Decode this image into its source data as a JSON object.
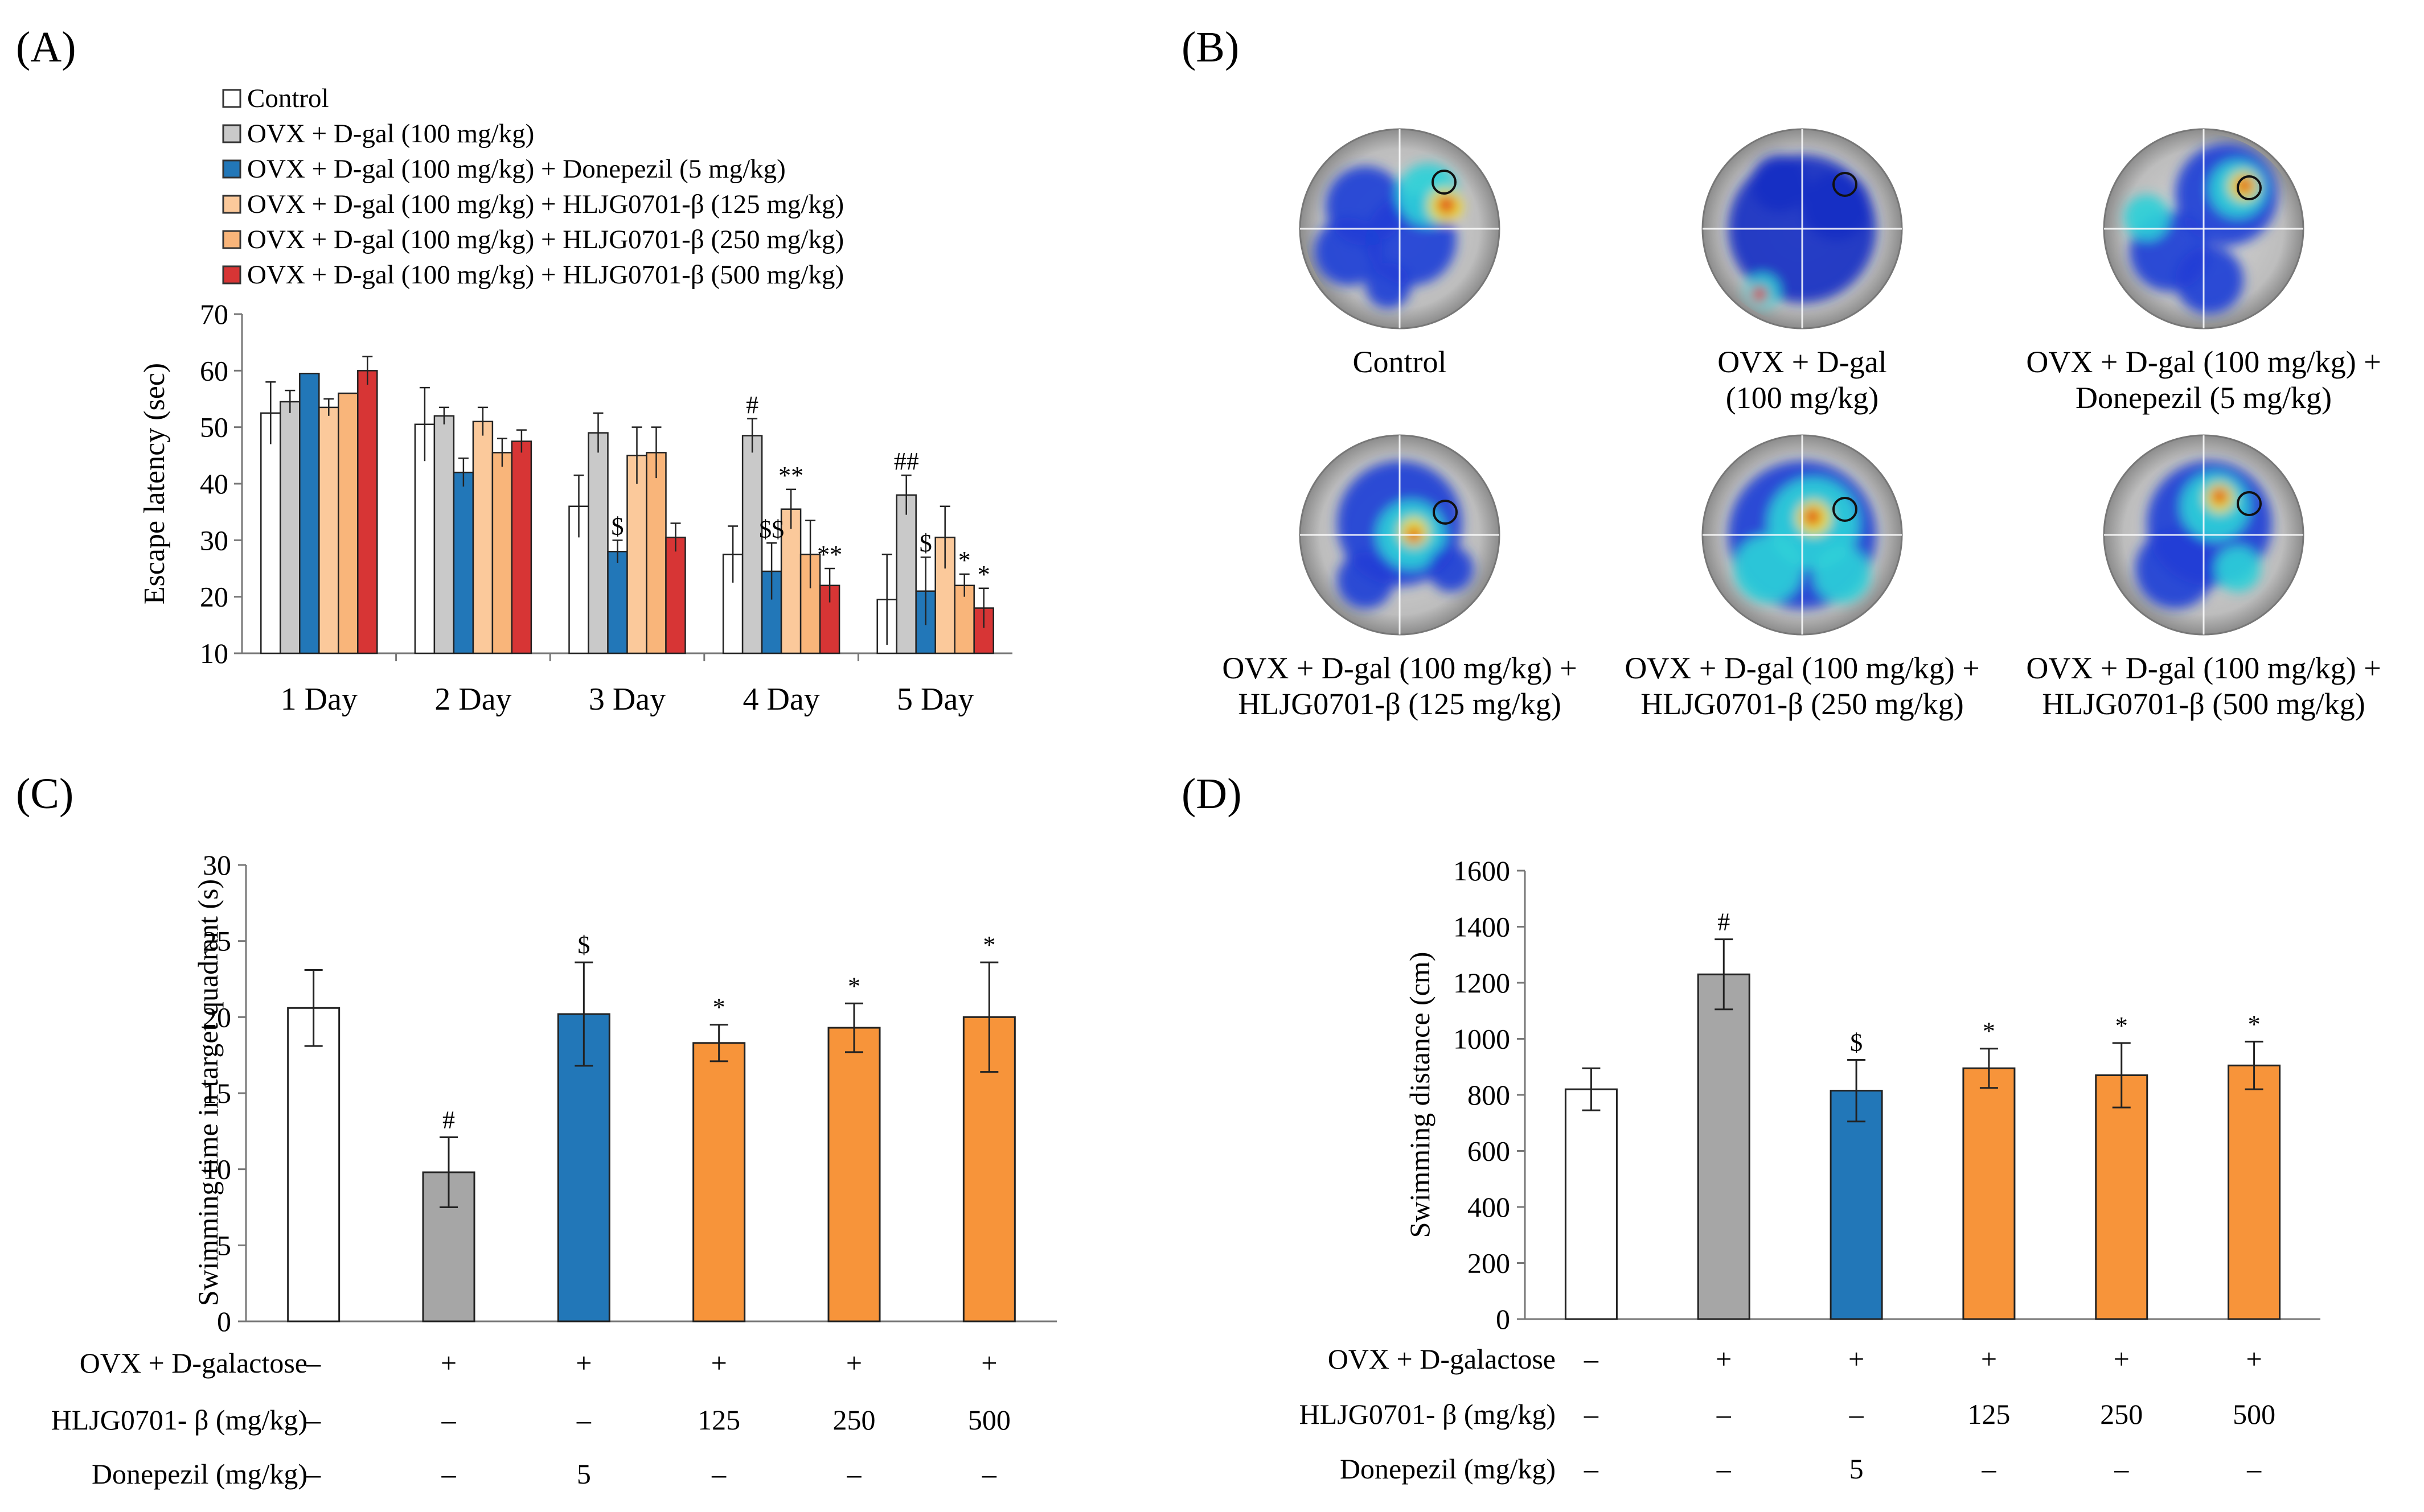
{
  "labels": {
    "A": "(A)",
    "B": "(B)",
    "C": "(C)",
    "D": "(D)"
  },
  "colors": {
    "control": "#ffffff",
    "ovx": "#c9c9c9",
    "donepezil": "#2277b8",
    "h125": "#fbc99b",
    "h250": "#f9b57a",
    "h500": "#d73535",
    "gray_c": "#a6a6a6",
    "orange_c": "#f7943a"
  },
  "legend": [
    "Control",
    "OVX + D-gal (100 mg/kg)",
    "OVX + D-gal (100 mg/kg) + Donepezil (5 mg/kg)",
    "OVX + D-gal (100 mg/kg) + HLJG0701-β (125 mg/kg)",
    "OVX + D-gal (100 mg/kg) + HLJG0701-β (250 mg/kg)",
    "OVX + D-gal (100 mg/kg) + HLJG0701-β (500 mg/kg)"
  ],
  "heatmaps": [
    {
      "cap1": "Control",
      "cap2": ""
    },
    {
      "cap1": "OVX + D-gal",
      "cap2": "(100 mg/kg)"
    },
    {
      "cap1": "OVX + D-gal (100 mg/kg) +",
      "cap2": "Donepezil (5 mg/kg)"
    },
    {
      "cap1": "OVX + D-gal (100 mg/kg) +",
      "cap2": "HLJG0701-β (125 mg/kg)"
    },
    {
      "cap1": "OVX + D-gal (100 mg/kg) +",
      "cap2": "HLJG0701-β (250 mg/kg)"
    },
    {
      "cap1": "OVX + D-gal (100 mg/kg) +",
      "cap2": "HLJG0701-β (500 mg/kg)"
    }
  ],
  "table_rows": {
    "r1_label": "OVX + D-galactose",
    "r1": [
      "–",
      "+",
      "+",
      "+",
      "+",
      "+"
    ],
    "r2_label": "HLJG0701- β (mg/kg)",
    "r2": [
      "–",
      "–",
      "–",
      "125",
      "250",
      "500"
    ],
    "r3_label": "Donepezil (mg/kg)",
    "r3": [
      "–",
      "–",
      "5",
      "–",
      "–",
      "–"
    ]
  },
  "chart_data": [
    {
      "id": "A",
      "type": "bar",
      "ylabel": "Escape latency (sec)",
      "xlabel": "",
      "ylim": [
        10,
        70
      ],
      "yticks": [
        10,
        20,
        30,
        40,
        50,
        60,
        70
      ],
      "categories": [
        "1 Day",
        "2 Day",
        "3 Day",
        "4 Day",
        "5 Day"
      ],
      "series": [
        {
          "name": "Control",
          "values": [
            52.5,
            50.5,
            36,
            27.5,
            19.5
          ],
          "errors": [
            5.5,
            6.5,
            5.5,
            5,
            8
          ]
        },
        {
          "name": "OVX + D-gal (100 mg/kg)",
          "values": [
            54.5,
            52,
            49,
            48.5,
            38
          ],
          "errors": [
            2,
            1.5,
            3.5,
            3,
            3.5
          ]
        },
        {
          "name": "Donepezil",
          "values": [
            59.5,
            42,
            28,
            24.5,
            21
          ],
          "errors": [
            0,
            2.5,
            2,
            5,
            6
          ]
        },
        {
          "name": "HLJG0701-β 125",
          "values": [
            53.5,
            51,
            45,
            35.5,
            30.5
          ],
          "errors": [
            1.5,
            2.5,
            5,
            3.5,
            5.5
          ]
        },
        {
          "name": "HLJG0701-β 250",
          "values": [
            56,
            45.5,
            45.5,
            27.5,
            22
          ],
          "errors": [
            0,
            2.5,
            4.5,
            6,
            2
          ]
        },
        {
          "name": "HLJG0701-β 500",
          "values": [
            60,
            47.5,
            30.5,
            22,
            18
          ],
          "errors": [
            2.5,
            2,
            2.5,
            3,
            3.5
          ]
        }
      ],
      "annotations": [
        {
          "cat": 2,
          "series": 2,
          "text": "$"
        },
        {
          "cat": 3,
          "series": 1,
          "text": "#"
        },
        {
          "cat": 3,
          "series": 2,
          "text": "$$"
        },
        {
          "cat": 3,
          "series": 3,
          "text": "**"
        },
        {
          "cat": 3,
          "series": 5,
          "text": "**"
        },
        {
          "cat": 4,
          "series": 1,
          "text": "##"
        },
        {
          "cat": 4,
          "series": 2,
          "text": "$"
        },
        {
          "cat": 4,
          "series": 4,
          "text": "*"
        },
        {
          "cat": 4,
          "series": 5,
          "text": "*"
        }
      ]
    },
    {
      "id": "C",
      "type": "bar",
      "ylabel": "Swimming time in target quadrant (s)",
      "ylim": [
        0,
        30
      ],
      "yticks": [
        0,
        5,
        10,
        15,
        20,
        25,
        30
      ],
      "values": [
        20.6,
        9.8,
        20.2,
        18.3,
        19.3,
        20
      ],
      "errors": [
        2.5,
        2.3,
        3.4,
        1.2,
        1.6,
        3.6
      ],
      "annotations": [
        "",
        "#",
        "$",
        "*",
        "*",
        "*"
      ]
    },
    {
      "id": "D",
      "type": "bar",
      "ylabel": "Swimming distance (cm)",
      "ylim": [
        0,
        1600
      ],
      "yticks": [
        0,
        200,
        400,
        600,
        800,
        1000,
        1200,
        1400,
        1600
      ],
      "values": [
        820,
        1230,
        815,
        895,
        870,
        905
      ],
      "errors": [
        75,
        125,
        110,
        70,
        115,
        85
      ],
      "annotations": [
        "",
        "#",
        "$",
        "*",
        "*",
        "*"
      ]
    }
  ]
}
